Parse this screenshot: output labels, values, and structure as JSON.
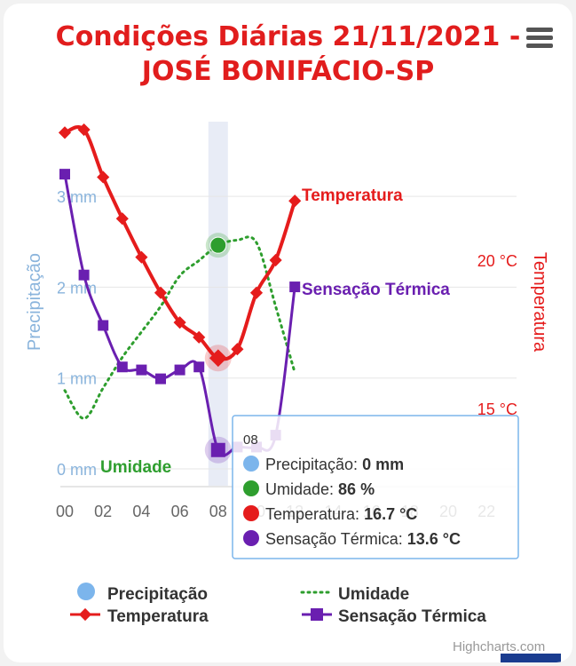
{
  "title_lines": [
    "Condições Diárias 21/11/2021 -",
    "JOSÉ BONIFÁCIO-SP"
  ],
  "credits": "Highcharts.com",
  "chart_data": {
    "type": "line",
    "title": "Condições Diárias 21/11/2021 - JOSÉ BONIFÁCIO-SP",
    "x": [
      0,
      1,
      2,
      3,
      4,
      5,
      6,
      7,
      8,
      9,
      10,
      11,
      12
    ],
    "x_ticks": [
      "00",
      "02",
      "04",
      "06",
      "08",
      "10",
      "12",
      "14",
      "16",
      "18",
      "20",
      "22"
    ],
    "y_left": {
      "label": "Precipitação",
      "ticks": [
        "0 mm",
        "1 mm",
        "2 mm",
        "3 mm"
      ],
      "range": [
        0,
        3.1
      ]
    },
    "y_right": {
      "label": "Temperatura",
      "ticks": [
        "15 °C",
        "20 °C"
      ],
      "range": [
        11.4,
        24.9
      ]
    },
    "series": [
      {
        "name": "Precipitação",
        "type": "column",
        "axis": "left",
        "color": "#7cb5ec",
        "values": [
          0,
          0,
          0,
          0,
          0,
          0,
          0,
          0,
          0,
          0,
          0,
          0,
          0
        ]
      },
      {
        "name": "Umidade",
        "type": "dotted-line",
        "axis": "humidity",
        "color": "#2e9e2e",
        "values": [
          29,
          18,
          30,
          42,
          52,
          62,
          74,
          80,
          86,
          88,
          87,
          62,
          36
        ]
      },
      {
        "name": "Temperatura",
        "type": "line",
        "axis": "right",
        "color": "#e51c1c",
        "values": [
          24.3,
          24.4,
          22.8,
          21.4,
          20.1,
          18.9,
          17.9,
          17.4,
          16.7,
          17.0,
          18.9,
          20.0,
          22.0
        ]
      },
      {
        "name": "Sensação Térmica",
        "type": "line",
        "axis": "right",
        "color": "#6a1fb0",
        "values": [
          22.9,
          19.5,
          17.8,
          16.4,
          16.3,
          16.0,
          16.3,
          16.4,
          13.6,
          13.7,
          13.7,
          14.1,
          19.1
        ]
      }
    ],
    "series_labels": {
      "temperatura": "Temperatura",
      "sensacao": "Sensação Térmica",
      "umidade": "Umidade"
    },
    "legend": {
      "placement": "bottom",
      "items": [
        "Precipitação",
        "Umidade",
        "Temperatura",
        "Sensação Térmica"
      ]
    },
    "hover_index": 8,
    "tooltip": {
      "header": "08",
      "rows": [
        {
          "color": "#7cb5ec",
          "label": "Precipitação: ",
          "value": "0 mm"
        },
        {
          "color": "#2e9e2e",
          "label": "Umidade: ",
          "value": "86 %"
        },
        {
          "color": "#e51c1c",
          "label": "Temperatura: ",
          "value": "16.7 °C"
        },
        {
          "color": "#6a1fb0",
          "label": "Sensação Térmica: ",
          "value": "13.6 °C"
        }
      ]
    }
  }
}
